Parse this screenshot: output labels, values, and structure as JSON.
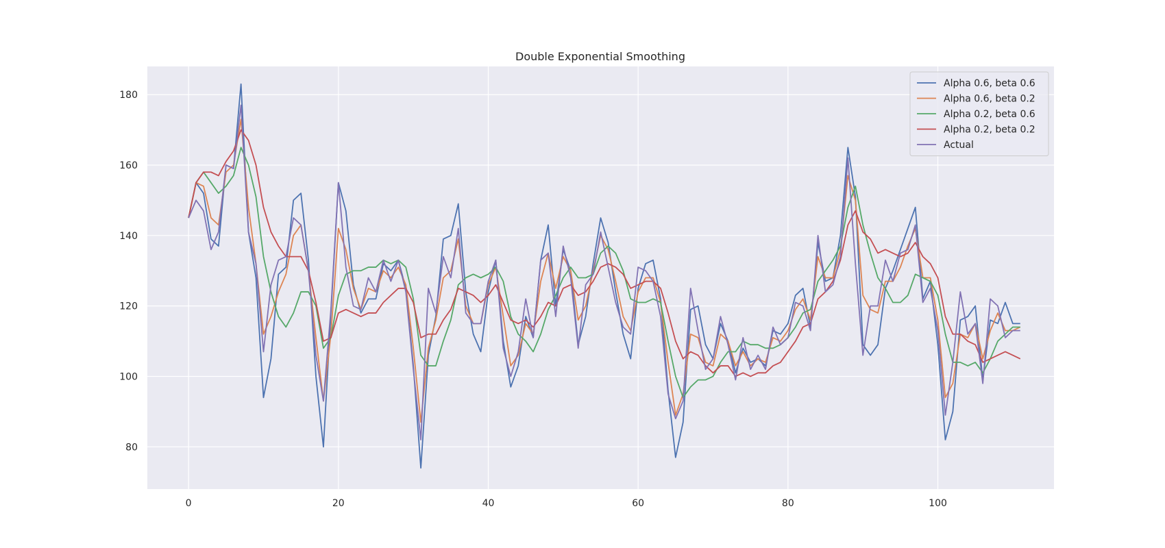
{
  "chart_data": {
    "type": "line",
    "title": "Double Exponential Smoothing",
    "xlabel": "",
    "ylabel": "",
    "xlim": [
      -5.5,
      115.5
    ],
    "ylim": [
      68,
      188
    ],
    "xticks": [
      0,
      20,
      40,
      60,
      80,
      100
    ],
    "yticks": [
      80,
      100,
      120,
      140,
      160,
      180
    ],
    "grid": true,
    "legend_position": "top-right",
    "series": [
      {
        "name": "Alpha 0.6, beta 0.6",
        "color": "#4c72b0",
        "values": [
          145,
          155,
          152,
          139,
          137,
          160,
          159,
          183,
          141,
          128,
          94,
          105,
          129,
          131,
          150,
          152,
          133,
          100,
          80,
          118,
          155,
          147,
          126,
          118,
          122,
          122,
          132,
          130,
          133,
          125,
          103,
          74,
          106,
          117,
          139,
          140,
          149,
          124,
          112,
          107,
          124,
          133,
          110,
          97,
          103,
          117,
          111,
          133,
          143,
          120,
          136,
          130,
          109,
          117,
          132,
          145,
          138,
          124,
          112,
          105,
          125,
          132,
          133,
          122,
          96,
          77,
          87,
          119,
          120,
          109,
          105,
          115,
          110,
          101,
          108,
          104,
          105,
          103,
          113,
          112,
          115,
          123,
          125,
          114,
          138,
          127,
          128,
          140,
          165,
          151,
          109,
          106,
          109,
          125,
          130,
          136,
          142,
          148,
          122,
          127,
          109,
          82,
          90,
          116,
          117,
          120,
          99,
          116,
          115,
          121,
          115,
          115
        ]
      },
      {
        "name": "Alpha 0.6, beta 0.2",
        "color": "#dd8452",
        "values": [
          145,
          155,
          154,
          145,
          143,
          158,
          160,
          173,
          148,
          132,
          112,
          117,
          124,
          129,
          140,
          143,
          130,
          111,
          93,
          112,
          142,
          136,
          125,
          119,
          125,
          124,
          130,
          128,
          131,
          126,
          108,
          87,
          108,
          116,
          128,
          130,
          139,
          120,
          115,
          115,
          126,
          131,
          117,
          103,
          106,
          115,
          112,
          127,
          135,
          125,
          134,
          130,
          116,
          120,
          130,
          140,
          136,
          127,
          117,
          113,
          124,
          128,
          128,
          121,
          104,
          89,
          95,
          112,
          111,
          104,
          103,
          112,
          110,
          103,
          107,
          103,
          105,
          104,
          111,
          110,
          113,
          119,
          122,
          116,
          134,
          128,
          128,
          136,
          157,
          150,
          123,
          119,
          118,
          127,
          127,
          131,
          137,
          142,
          128,
          128,
          116,
          94,
          98,
          112,
          111,
          115,
          105,
          113,
          118,
          113,
          113,
          114
        ]
      },
      {
        "name": "Alpha 0.2, beta 0.6",
        "color": "#55a868",
        "values": [
          145,
          155,
          158,
          155,
          152,
          154,
          157,
          165,
          160,
          151,
          134,
          124,
          117,
          114,
          118,
          124,
          124,
          120,
          108,
          111,
          123,
          129,
          130,
          130,
          131,
          131,
          133,
          132,
          133,
          131,
          122,
          106,
          103,
          103,
          110,
          116,
          126,
          128,
          129,
          128,
          129,
          131,
          127,
          117,
          112,
          110,
          107,
          112,
          119,
          123,
          128,
          131,
          128,
          128,
          129,
          135,
          137,
          135,
          130,
          122,
          121,
          121,
          122,
          121,
          110,
          100,
          94,
          97,
          99,
          99,
          100,
          104,
          107,
          107,
          110,
          109,
          109,
          108,
          108,
          109,
          111,
          114,
          118,
          119,
          127,
          130,
          133,
          137,
          148,
          154,
          143,
          135,
          128,
          125,
          121,
          121,
          123,
          129,
          128,
          127,
          123,
          112,
          104,
          104,
          103,
          104,
          101,
          105,
          110,
          112,
          114,
          114
        ]
      },
      {
        "name": "Alpha 0.2, beta 0.2",
        "color": "#c44e52",
        "values": [
          145,
          155,
          158,
          158,
          157,
          161,
          164,
          170,
          167,
          160,
          148,
          141,
          137,
          134,
          134,
          134,
          130,
          121,
          110,
          111,
          118,
          119,
          118,
          117,
          118,
          118,
          121,
          123,
          125,
          125,
          121,
          111,
          112,
          112,
          116,
          119,
          125,
          124,
          123,
          121,
          123,
          126,
          121,
          116,
          115,
          116,
          114,
          117,
          121,
          120,
          125,
          126,
          123,
          124,
          127,
          131,
          132,
          131,
          129,
          125,
          126,
          127,
          127,
          125,
          118,
          110,
          105,
          107,
          106,
          103,
          101,
          103,
          103,
          100,
          101,
          100,
          101,
          101,
          103,
          104,
          107,
          110,
          114,
          115,
          122,
          124,
          127,
          133,
          143,
          147,
          141,
          139,
          135,
          136,
          135,
          134,
          135,
          138,
          134,
          132,
          128,
          117,
          112,
          112,
          110,
          109,
          104,
          105,
          106,
          107,
          106,
          105
        ]
      },
      {
        "name": "Actual",
        "color": "#8172b3",
        "values": [
          145,
          150,
          147,
          136,
          141,
          160,
          159,
          177,
          141,
          132,
          107,
          126,
          133,
          134,
          145,
          143,
          130,
          106,
          93,
          119,
          155,
          131,
          120,
          119,
          128,
          124,
          133,
          127,
          133,
          124,
          102,
          82,
          125,
          118,
          134,
          128,
          142,
          118,
          115,
          115,
          127,
          133,
          108,
          100,
          107,
          122,
          111,
          133,
          135,
          117,
          137,
          128,
          108,
          126,
          129,
          141,
          131,
          121,
          114,
          112,
          131,
          130,
          127,
          117,
          95,
          88,
          93,
          125,
          113,
          102,
          105,
          117,
          109,
          99,
          111,
          102,
          106,
          102,
          114,
          109,
          111,
          121,
          120,
          113,
          140,
          124,
          126,
          134,
          162,
          132,
          106,
          120,
          120,
          133,
          127,
          135,
          136,
          143,
          121,
          125,
          113,
          89,
          104,
          124,
          112,
          115,
          98,
          122,
          120,
          111,
          113,
          113
        ]
      }
    ]
  }
}
